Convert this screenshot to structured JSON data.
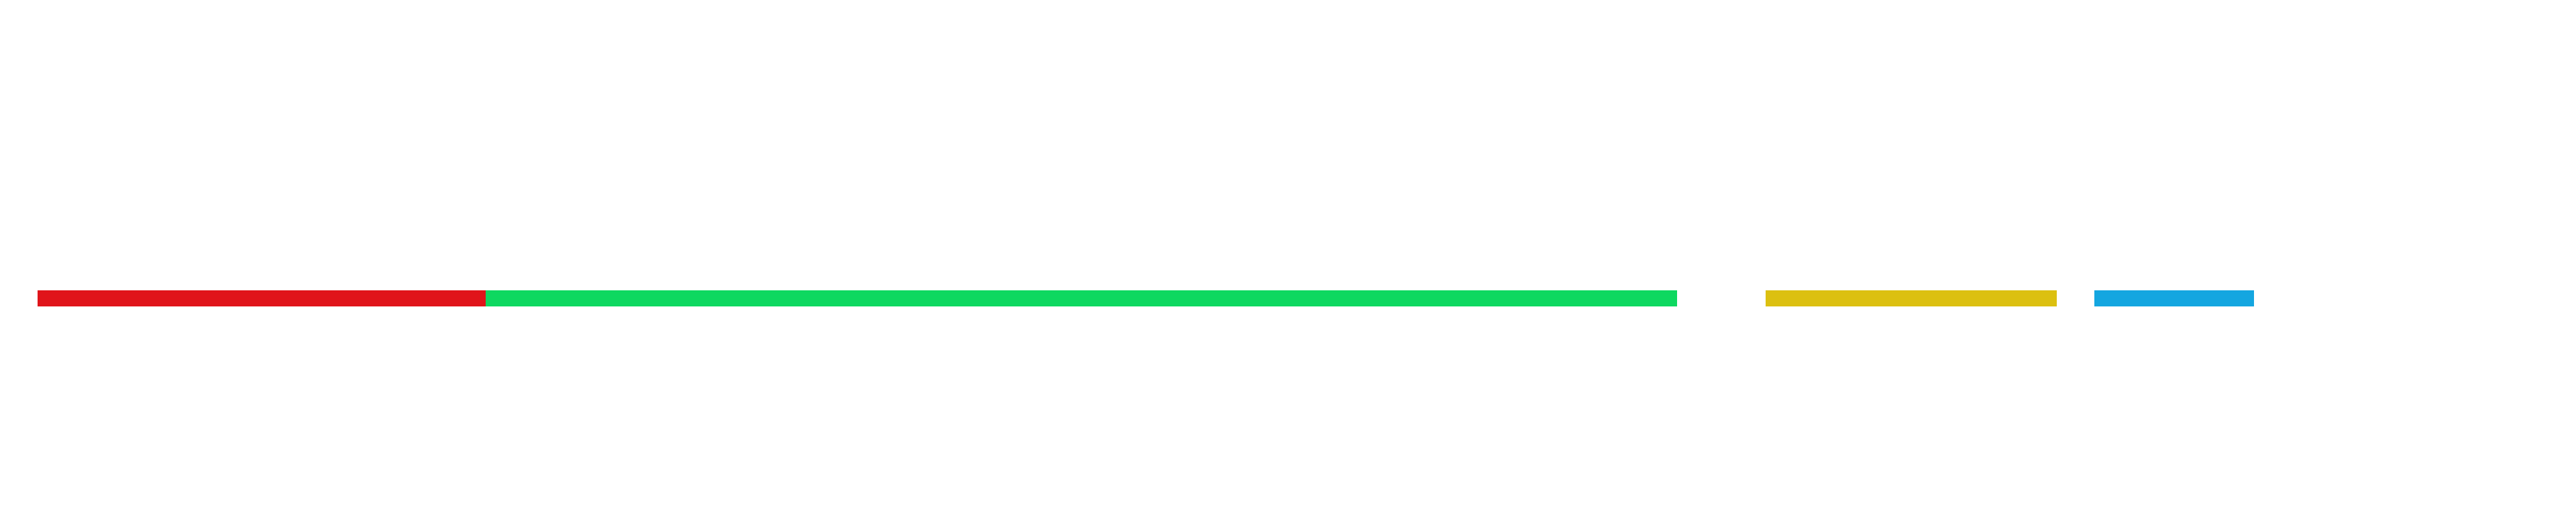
{
  "segments": [
    {
      "id": "seg-red",
      "name": "red-segment",
      "color": "#e0141a"
    },
    {
      "id": "seg-green",
      "name": "green-segment",
      "color": "#0ed860"
    },
    {
      "id": "seg-yellow",
      "name": "yellow-segment",
      "color": "#dcc010"
    },
    {
      "id": "seg-blue",
      "name": "blue-segment",
      "color": "#14a6e0"
    }
  ]
}
